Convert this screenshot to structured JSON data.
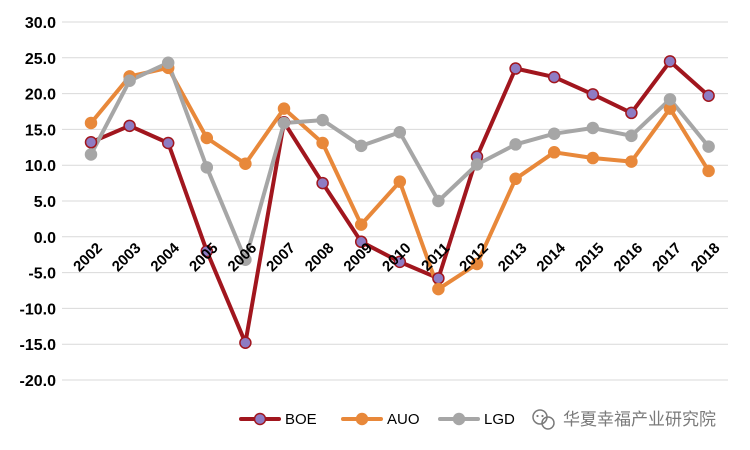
{
  "chart_data": {
    "type": "line",
    "title": "",
    "xlabel": "",
    "ylabel": "",
    "ylim": [
      -20,
      30
    ],
    "yticks": [
      30,
      25,
      20,
      15,
      10,
      5,
      0,
      -5,
      -10,
      -15,
      -20
    ],
    "ytick_labels": [
      "30.0",
      "25.0",
      "20.0",
      "15.0",
      "10.0",
      "5.0",
      "0.0",
      "-5.0",
      "-10.0",
      "-15.0",
      "-20.0"
    ],
    "grid": "horizontal",
    "legend_position": "bottom-center",
    "categories": [
      "2002",
      "2003",
      "2004",
      "2005",
      "2006",
      "2007",
      "2008",
      "2009",
      "2010",
      "2011",
      "2012",
      "2013",
      "2014",
      "2015",
      "2016",
      "2017",
      "2018"
    ],
    "series": [
      {
        "name": "BOE",
        "color": "#a1161e",
        "marker_fill": "#8e7cc3",
        "values": [
          13.2,
          15.5,
          13.1,
          -2.0,
          -14.8,
          16.0,
          7.5,
          -0.7,
          -3.5,
          -5.8,
          11.2,
          23.5,
          22.3,
          19.9,
          17.3,
          24.5,
          19.7
        ]
      },
      {
        "name": "AUO",
        "color": "#e8883a",
        "marker_fill": "#e8883a",
        "values": [
          15.9,
          22.4,
          23.6,
          13.8,
          10.2,
          17.9,
          13.1,
          1.7,
          7.7,
          -7.3,
          -3.8,
          8.1,
          11.8,
          11.0,
          10.5,
          17.9,
          9.2
        ]
      },
      {
        "name": "LGD",
        "color": "#a6a6a6",
        "marker_fill": "#a6a6a6",
        "values": [
          11.5,
          21.8,
          24.3,
          9.7,
          -3.2,
          15.9,
          16.3,
          12.7,
          14.6,
          5.0,
          10.1,
          12.9,
          14.4,
          15.2,
          14.1,
          19.2,
          12.6
        ]
      }
    ]
  },
  "watermark": {
    "text": "华夏幸福产业研究院",
    "icon": "wechat-icon"
  }
}
